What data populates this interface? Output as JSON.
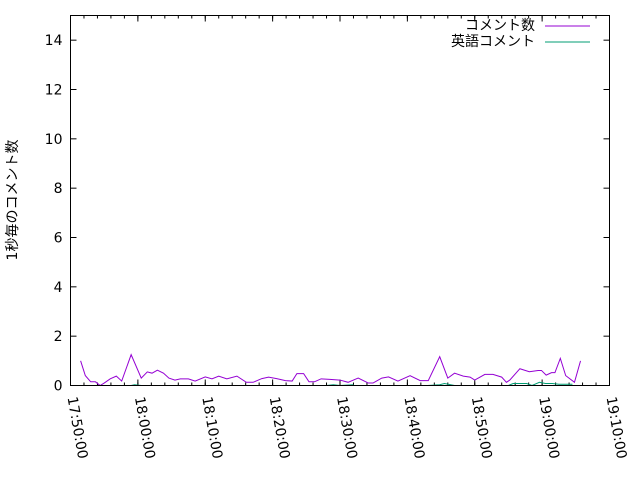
{
  "chart_data": {
    "type": "line",
    "title": "",
    "xlabel": "",
    "ylabel": "1秒毎のコメント数",
    "xlim": [
      "17:50:00",
      "19:10:00"
    ],
    "ylim": [
      0,
      15
    ],
    "x_ticks": [
      "17:50:00",
      "18:00:00",
      "18:10:00",
      "18:20:00",
      "18:30:00",
      "18:40:00",
      "18:50:00",
      "19:00:00",
      "19:10:00"
    ],
    "y_ticks": [
      "0",
      "2",
      "4",
      "6",
      "8",
      "10",
      "12",
      "14"
    ],
    "grid": false,
    "legend": "top-right",
    "series": [
      {
        "name": "コメント数",
        "color": "#9400d3",
        "x": [
          "17:51:30",
          "17:52:12",
          "17:53:00",
          "17:53:42",
          "17:54:24",
          "17:55:00",
          "17:55:54",
          "17:56:48",
          "17:57:36",
          "17:59:00",
          "18:00:30",
          "18:01:24",
          "18:02:06",
          "18:02:54",
          "18:03:48",
          "18:04:36",
          "18:05:30",
          "18:06:18",
          "18:07:30",
          "18:08:30",
          "18:10:00",
          "18:11:00",
          "18:12:00",
          "18:13:12",
          "18:14:42",
          "18:16:06",
          "18:17:06",
          "18:18:24",
          "18:19:24",
          "18:20:36",
          "18:21:54",
          "18:22:54",
          "18:23:36",
          "18:24:36",
          "18:25:24",
          "18:26:12",
          "18:27:12",
          "18:28:30",
          "18:30:00",
          "18:31:12",
          "18:32:42",
          "18:34:12",
          "18:34:54",
          "18:36:12",
          "18:37:12",
          "18:38:36",
          "18:40:24",
          "18:41:54",
          "18:43:06",
          "18:44:48",
          "18:46:00",
          "18:47:00",
          "18:48:18",
          "18:49:18",
          "18:50:00",
          "18:51:30",
          "18:52:42",
          "18:54:00",
          "18:54:42",
          "18:55:12",
          "18:56:42",
          "18:58:06",
          "18:59:24",
          "18:59:54",
          "19:00:36",
          "19:01:24",
          "19:01:54",
          "19:02:42",
          "19:03:30",
          "19:04:48",
          "19:05:42"
        ],
        "values": [
          1.0,
          0.4,
          0.15,
          0.15,
          0.0,
          0.1,
          0.27,
          0.38,
          0.18,
          1.25,
          0.3,
          0.55,
          0.5,
          0.62,
          0.5,
          0.3,
          0.22,
          0.27,
          0.27,
          0.18,
          0.35,
          0.27,
          0.38,
          0.27,
          0.38,
          0.13,
          0.13,
          0.28,
          0.34,
          0.28,
          0.2,
          0.18,
          0.48,
          0.48,
          0.15,
          0.15,
          0.27,
          0.25,
          0.22,
          0.13,
          0.3,
          0.1,
          0.1,
          0.3,
          0.35,
          0.18,
          0.4,
          0.2,
          0.2,
          1.17,
          0.3,
          0.5,
          0.38,
          0.34,
          0.22,
          0.45,
          0.45,
          0.34,
          0.13,
          0.22,
          0.68,
          0.56,
          0.61,
          0.61,
          0.42,
          0.52,
          0.52,
          1.1,
          0.4,
          0.13,
          1.0
        ]
      },
      {
        "name": "英語コメント",
        "color": "#009e73",
        "x": [
          "17:59:00",
          "17:59:30",
          "18:00:30",
          "18:01:00",
          "18:03:00",
          "18:06:00",
          "18:07:00",
          "18:10:00",
          "18:12:00",
          "18:13:00",
          "18:15:00",
          "18:17:00",
          "18:19:00",
          "18:20:00",
          "18:23:30",
          "18:28:00",
          "18:29:00",
          "18:30:00",
          "18:32:00",
          "18:34:00",
          "18:39:18",
          "18:43:00",
          "18:44:48",
          "18:45:30",
          "18:47:00",
          "18:48:18",
          "18:49:00",
          "18:51:00",
          "18:53:30",
          "18:55:00",
          "18:55:42",
          "18:57:42",
          "18:58:30",
          "18:59:36",
          "19:00:30",
          "19:01:30",
          "19:02:30",
          "19:03:30",
          "19:04:30"
        ],
        "values": [
          0,
          0.03,
          0,
          null,
          0,
          0,
          null,
          0,
          0,
          null,
          0,
          0,
          0,
          null,
          0,
          0,
          0.03,
          0,
          0.03,
          null,
          0,
          0,
          0.03,
          0.08,
          0,
          null,
          0,
          0,
          null,
          0,
          0.08,
          0.08,
          0,
          0.13,
          0.08,
          0.08,
          0.05,
          0.05,
          0.05
        ]
      }
    ]
  }
}
